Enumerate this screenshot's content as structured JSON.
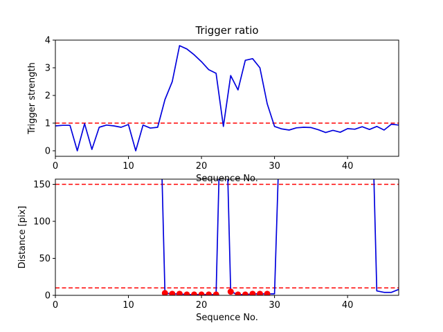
{
  "chart_data": [
    {
      "type": "line",
      "title": "Trigger ratio",
      "xlabel": "Sequence No.",
      "ylabel": "Trigger strength",
      "xlim": [
        0,
        47
      ],
      "ylim": [
        -0.2,
        4.0
      ],
      "xticks": [
        0,
        10,
        20,
        30,
        40
      ],
      "yticks": [
        0,
        1,
        2,
        3,
        4
      ],
      "grid": false,
      "series": [
        {
          "style": "line",
          "color": "#0000dd",
          "x": [
            0,
            1,
            2,
            3,
            4,
            5,
            6,
            7,
            8,
            9,
            10,
            11,
            12,
            13,
            14,
            15,
            16,
            17,
            18,
            19,
            20,
            21,
            22,
            23,
            24,
            25,
            26,
            27,
            28,
            29,
            30,
            31,
            32,
            33,
            34,
            35,
            36,
            37,
            38,
            39,
            40,
            41,
            42,
            43,
            44,
            45,
            46,
            47
          ],
          "y": [
            0.9,
            0.92,
            0.92,
            0.0,
            0.98,
            0.05,
            0.85,
            0.93,
            0.9,
            0.85,
            0.95,
            0.0,
            0.93,
            0.82,
            0.85,
            1.85,
            2.5,
            3.8,
            3.68,
            3.47,
            3.22,
            2.93,
            2.8,
            0.88,
            2.72,
            2.2,
            3.27,
            3.33,
            3.0,
            1.7,
            0.88,
            0.79,
            0.75,
            0.83,
            0.85,
            0.84,
            0.76,
            0.66,
            0.74,
            0.67,
            0.8,
            0.78,
            0.87,
            0.77,
            0.88,
            0.75,
            0.96,
            0.93
          ]
        }
      ],
      "hlines": [
        {
          "y": 1.0,
          "color": "#ff0000",
          "style": "dashed"
        }
      ]
    },
    {
      "type": "line",
      "xlabel": "Sequence No.",
      "ylabel": "Distance [pix]",
      "xlim": [
        0,
        47
      ],
      "ylim": [
        0,
        157
      ],
      "xticks": [
        0,
        10,
        20,
        30,
        40
      ],
      "yticks": [
        0,
        50,
        100,
        150
      ],
      "grid": false,
      "series": [
        {
          "style": "line",
          "color": "#0000dd",
          "x": [
            14.6,
            15,
            16,
            17,
            18,
            19,
            20,
            21,
            22,
            22.4,
            23.6,
            24,
            25,
            26,
            27,
            28,
            29,
            30,
            30.5,
            43.6,
            44,
            45,
            46,
            47
          ],
          "y": [
            160,
            3,
            2,
            2,
            1,
            1,
            1,
            1,
            1,
            160,
            160,
            5,
            1,
            1,
            2,
            2,
            2,
            2,
            160,
            160,
            6,
            4,
            4,
            8
          ]
        },
        {
          "style": "markers",
          "color": "#ff0000",
          "x": [
            15,
            16,
            17,
            18,
            19,
            20,
            21,
            22,
            24,
            25,
            26,
            27,
            28,
            29
          ],
          "y": [
            3,
            2,
            2,
            1,
            1,
            1,
            1,
            1,
            5,
            1,
            1,
            2,
            2,
            2
          ]
        }
      ],
      "hlines": [
        {
          "y": 150,
          "color": "#ff0000",
          "style": "dashed"
        },
        {
          "y": 10,
          "color": "#ff0000",
          "style": "dashed"
        }
      ]
    }
  ]
}
